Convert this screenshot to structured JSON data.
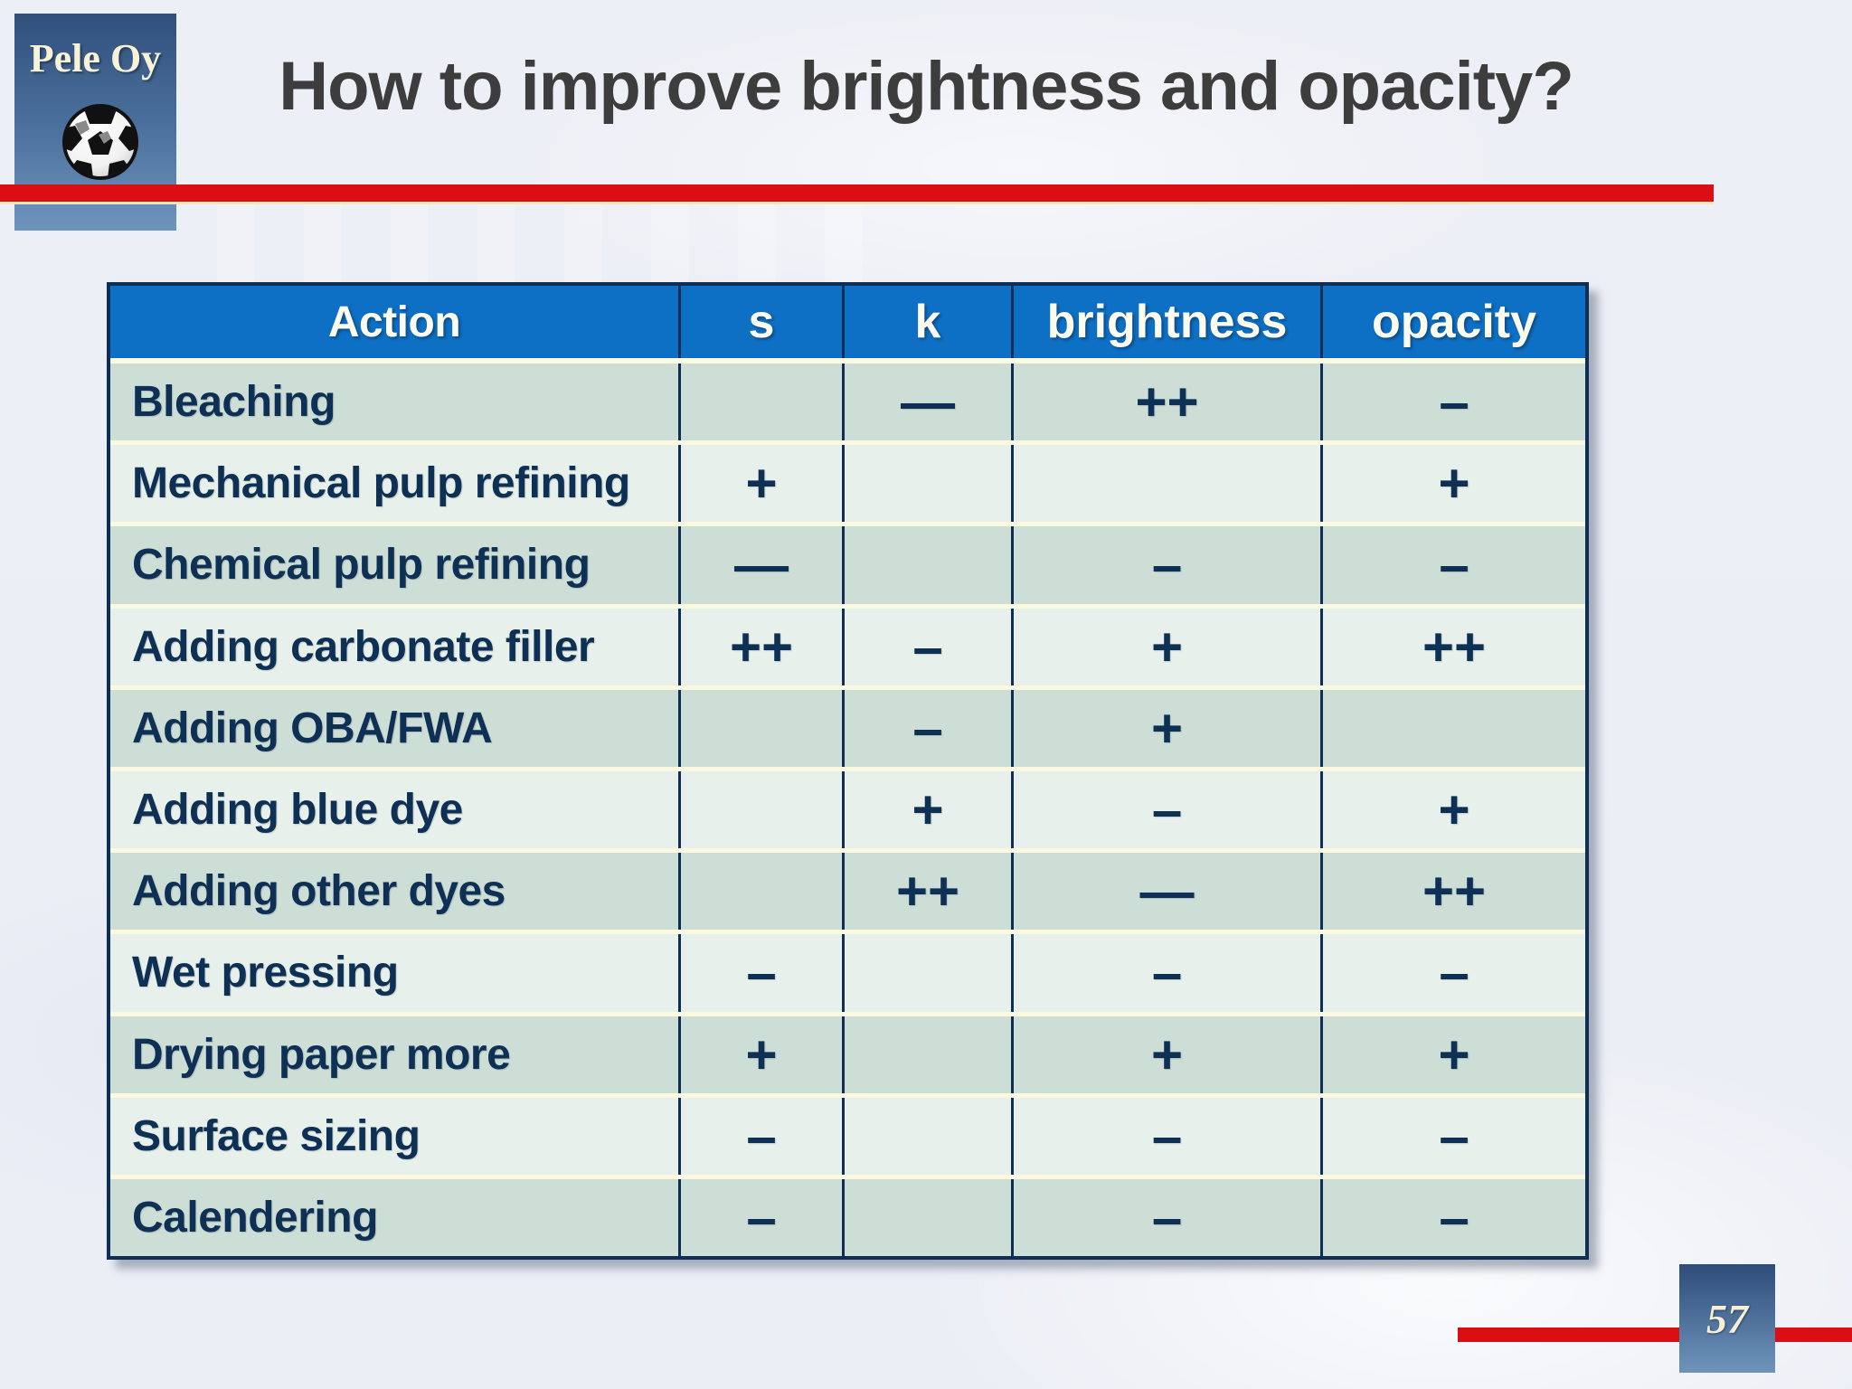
{
  "slide": {
    "logo": {
      "text": "Pele Oy",
      "icon": "soccer-ball-icon"
    },
    "title": "How to improve brightness and opacity?",
    "page_number": "57"
  },
  "table": {
    "columns": [
      "Action",
      "s",
      "k",
      "brightness",
      "opacity"
    ],
    "rows": [
      {
        "action": "Bleaching",
        "s": "",
        "k": "—",
        "brightness": "++",
        "opacity": "–"
      },
      {
        "action": "Mechanical pulp refining",
        "s": "+",
        "k": "",
        "brightness": "",
        "opacity": "+"
      },
      {
        "action": "Chemical pulp refining",
        "s": "—",
        "k": "",
        "brightness": "–",
        "opacity": "–"
      },
      {
        "action": "Adding carbonate filler",
        "s": "++",
        "k": "–",
        "brightness": "+",
        "opacity": "++"
      },
      {
        "action": "Adding OBA/FWA",
        "s": "",
        "k": "–",
        "brightness": "+",
        "opacity": ""
      },
      {
        "action": "Adding blue dye",
        "s": "",
        "k": "+",
        "brightness": "–",
        "opacity": "+"
      },
      {
        "action": "Adding other dyes",
        "s": "",
        "k": "++",
        "brightness": "—",
        "opacity": "++"
      },
      {
        "action": "Wet pressing",
        "s": "–",
        "k": "",
        "brightness": "–",
        "opacity": "–"
      },
      {
        "action": "Drying paper more",
        "s": "+",
        "k": "",
        "brightness": "+",
        "opacity": "+"
      },
      {
        "action": "Surface sizing",
        "s": "–",
        "k": "",
        "brightness": "–",
        "opacity": "–"
      },
      {
        "action": "Calendering",
        "s": "–",
        "k": "",
        "brightness": "–",
        "opacity": "–"
      }
    ]
  },
  "colors": {
    "accent_red": "#da0e13",
    "header_blue": "#0d70c5",
    "row_dark": "#cdded7",
    "row_light": "#e7f0ea",
    "separator_cream": "#fafae3",
    "grid_navy": "#0f2e55",
    "text_navy": "#0e3055",
    "title_gray": "#3d3d3d",
    "logo_gradient_top": "#30507b",
    "logo_gradient_bottom": "#6f95bd",
    "logo_text_cream": "#f7f3d9",
    "background": "#edeff6"
  }
}
